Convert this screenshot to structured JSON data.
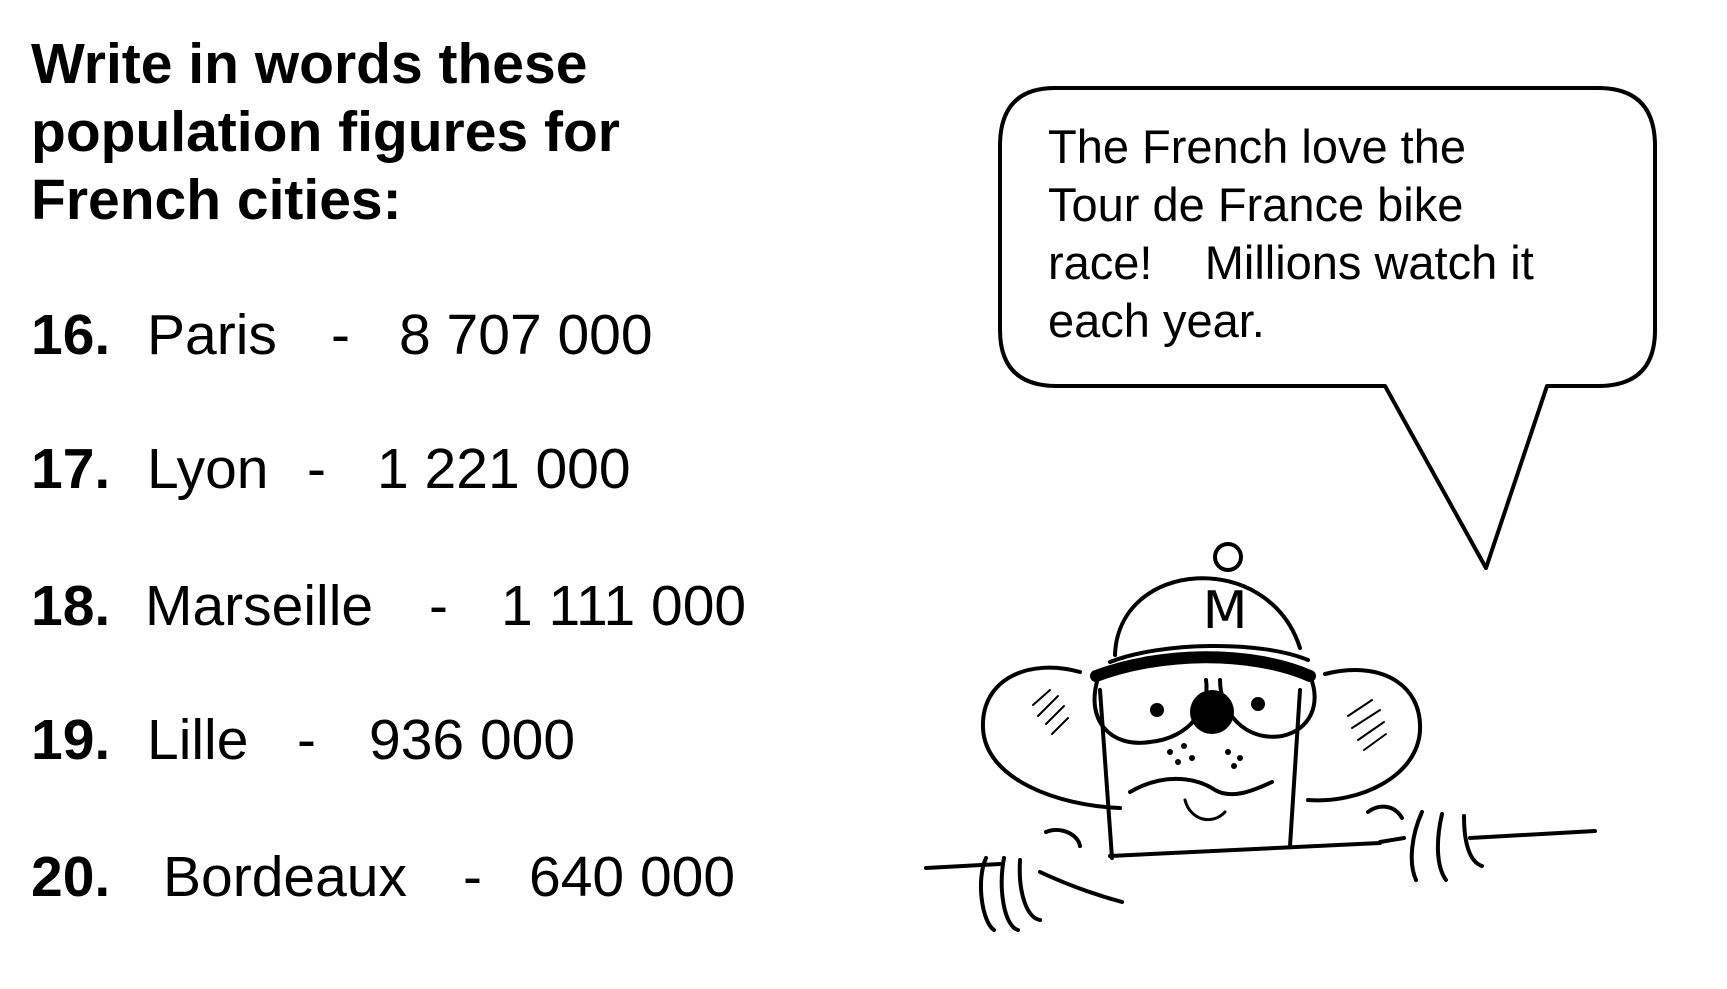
{
  "heading": {
    "line1": "Write in words these",
    "line2": "population figures for",
    "line3": "French cities:"
  },
  "items": [
    {
      "number": "16.",
      "city": "Paris",
      "dash": "-",
      "population": "8 707 000"
    },
    {
      "number": "17.",
      "city": "Lyon",
      "dash": "-",
      "population": "1 221 000"
    },
    {
      "number": "18.",
      "city": "Marseille",
      "dash": "-",
      "population": "1 111 000"
    },
    {
      "number": "19.",
      "city": "Lille",
      "dash": "-",
      "population": "936 000"
    },
    {
      "number": "20.",
      "city": "Bordeaux",
      "dash": "-",
      "population": "640 000"
    }
  ],
  "speech_bubble": {
    "line1": "The French love the",
    "line2": "Tour de France bike",
    "line3": "race!    Millions watch it",
    "line4": "each year."
  },
  "cartoon": {
    "cap_letter": "M"
  }
}
